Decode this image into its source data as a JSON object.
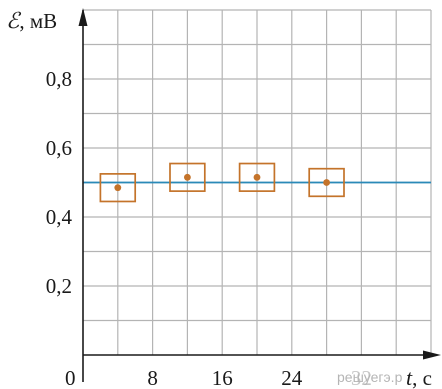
{
  "chart_data": {
    "type": "scatter",
    "title": "",
    "x_axis": {
      "variable": "t",
      "unit": ", с",
      "range": [
        0,
        40
      ],
      "grid_step": 4,
      "tick_values": [
        8,
        16,
        24,
        32
      ],
      "tick_labels": [
        "8",
        "16",
        "24",
        "32"
      ],
      "origin_label": "0"
    },
    "y_axis": {
      "variable": "ℰ",
      "unit": ", мВ",
      "range": [
        0,
        1.0
      ],
      "grid_step": 0.1,
      "tick_values": [
        0.2,
        0.4,
        0.6,
        0.8
      ],
      "tick_labels": [
        "0,2",
        "0,4",
        "0,6",
        "0,8"
      ]
    },
    "grid": true,
    "points": [
      {
        "x": 4,
        "y": 0.485,
        "x_err": 2,
        "y_err": 0.04
      },
      {
        "x": 12,
        "y": 0.515,
        "x_err": 2,
        "y_err": 0.04
      },
      {
        "x": 20,
        "y": 0.515,
        "x_err": 2,
        "y_err": 0.04
      },
      {
        "x": 28,
        "y": 0.5,
        "x_err": 2,
        "y_err": 0.04
      }
    ],
    "reference_line": {
      "y": 0.5
    },
    "colors": {
      "grid": "#b4b4b4",
      "axes": "#1a1a1a",
      "points": "#c4732a",
      "error_boxes": "#c4732a",
      "reference_line": "#2a8ab8"
    }
  },
  "watermark": "решуегэ.рф"
}
